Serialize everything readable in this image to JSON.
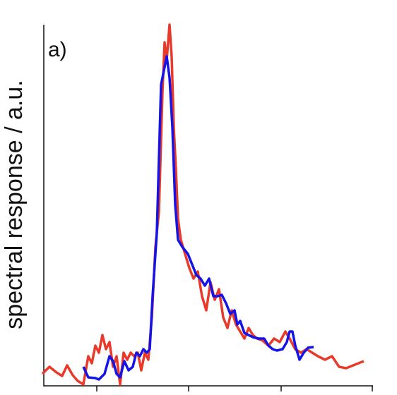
{
  "chart_data": {
    "type": "line",
    "ylabel": "spectral response / a.u.",
    "annotation": "a)",
    "xlim": [
      -78,
      390
    ],
    "xticks": [
      0,
      130,
      261,
      390
    ],
    "ylim": [
      0,
      510
    ],
    "series": [
      {
        "color": "#e8392a",
        "x": [
          -77,
          -67,
          -57,
          -49,
          -42,
          -34,
          -27,
          -19,
          -12,
          -7,
          -2,
          3,
          8,
          13,
          18,
          23,
          28,
          33,
          38,
          43,
          48,
          53,
          58,
          63,
          68,
          73,
          78,
          83,
          88,
          93,
          96,
          99,
          103,
          106,
          109,
          112,
          115,
          119,
          125,
          131,
          137,
          143,
          149,
          155,
          161,
          167,
          173,
          179,
          185,
          191,
          197,
          203,
          209,
          215,
          221,
          227,
          235,
          243,
          251,
          259,
          267,
          273,
          281,
          289,
          297,
          305,
          313,
          323,
          333,
          343,
          353,
          363,
          378
        ],
        "values": [
          15,
          25,
          17,
          12,
          27,
          13,
          5,
          0,
          40,
          30,
          55,
          45,
          70,
          50,
          60,
          25,
          40,
          0,
          45,
          35,
          45,
          40,
          45,
          20,
          45,
          35,
          95,
          195,
          245,
          415,
          485,
          460,
          510,
          465,
          365,
          305,
          235,
          205,
          185,
          165,
          150,
          160,
          125,
          105,
          145,
          120,
          135,
          95,
          80,
          105,
          85,
          75,
          65,
          80,
          70,
          65,
          62,
          55,
          65,
          60,
          75,
          65,
          50,
          45,
          50,
          45,
          40,
          35,
          40,
          25,
          23,
          27,
          33
        ]
      },
      {
        "color": "#1414e6",
        "x": [
          -19,
          -12,
          -2,
          3,
          11,
          18,
          23,
          28,
          33,
          39,
          45,
          51,
          56,
          61,
          66,
          71,
          75,
          79,
          85,
          91,
          95,
          99,
          103,
          107,
          111,
          115,
          121,
          129,
          135,
          141,
          147,
          153,
          159,
          165,
          171,
          177,
          183,
          189,
          195,
          199,
          203,
          209,
          215,
          221,
          229,
          237,
          243,
          249,
          255,
          263,
          269,
          273,
          277,
          281,
          287,
          293,
          299,
          307
        ],
        "values": [
          25,
          10,
          9,
          7,
          15,
          40,
          33,
          15,
          10,
          33,
          20,
          25,
          45,
          40,
          50,
          45,
          50,
          125,
          215,
          425,
          445,
          465,
          435,
          365,
          255,
          205,
          195,
          185,
          170,
          155,
          150,
          140,
          150,
          125,
          125,
          127,
          115,
          100,
          105,
          85,
          90,
          73,
          70,
          67,
          65,
          65,
          55,
          50,
          48,
          50,
          60,
          75,
          75,
          55,
          35,
          45,
          52,
          53
        ]
      }
    ]
  }
}
